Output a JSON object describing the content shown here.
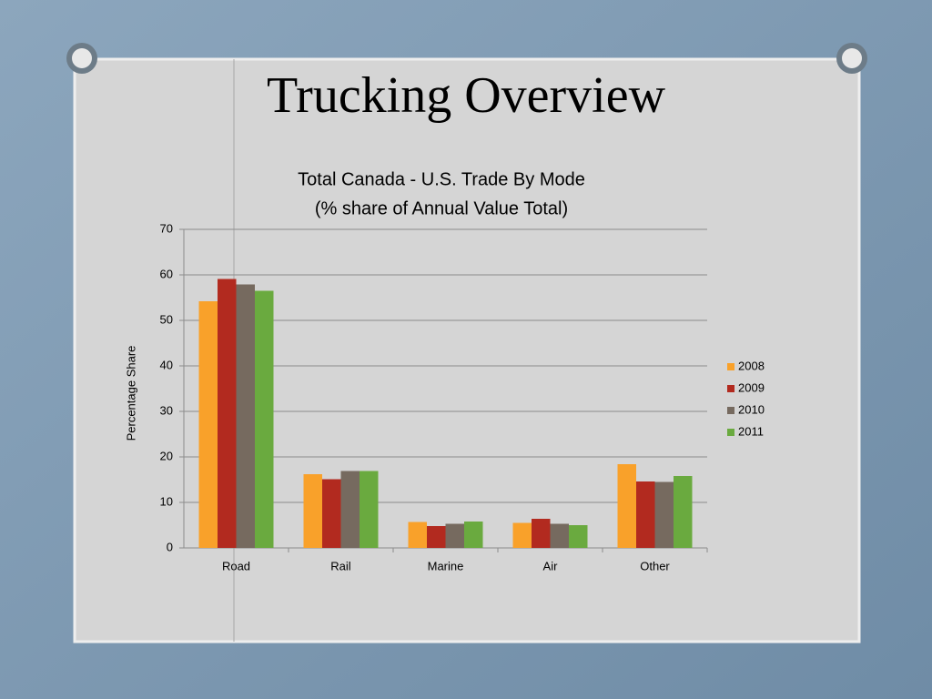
{
  "slide": {
    "title": "Trucking Overview"
  },
  "chart_data": {
    "type": "bar",
    "title": "Total Canada - U.S. Trade By Mode",
    "subtitle": "(% share of Annual Value Total)",
    "y_label": "Percentage Share",
    "categories": [
      "Road",
      "Rail",
      "Marine",
      "Air",
      "Other"
    ],
    "series": [
      {
        "name": "2008",
        "color": "#f9a12a",
        "values": [
          54.2,
          16.2,
          5.7,
          5.5,
          18.4
        ]
      },
      {
        "name": "2009",
        "color": "#b22a1f",
        "values": [
          59.1,
          15.1,
          4.8,
          6.4,
          14.6
        ]
      },
      {
        "name": "2010",
        "color": "#766a5f",
        "values": [
          57.9,
          16.9,
          5.3,
          5.3,
          14.5
        ]
      },
      {
        "name": "2011",
        "color": "#6aaa3f",
        "values": [
          56.5,
          16.9,
          5.8,
          5.0,
          15.8
        ]
      }
    ],
    "ylim": [
      0,
      70
    ],
    "yticks": [
      0,
      10,
      20,
      30,
      40,
      50,
      60,
      70
    ],
    "grid": true,
    "legend": "right"
  }
}
